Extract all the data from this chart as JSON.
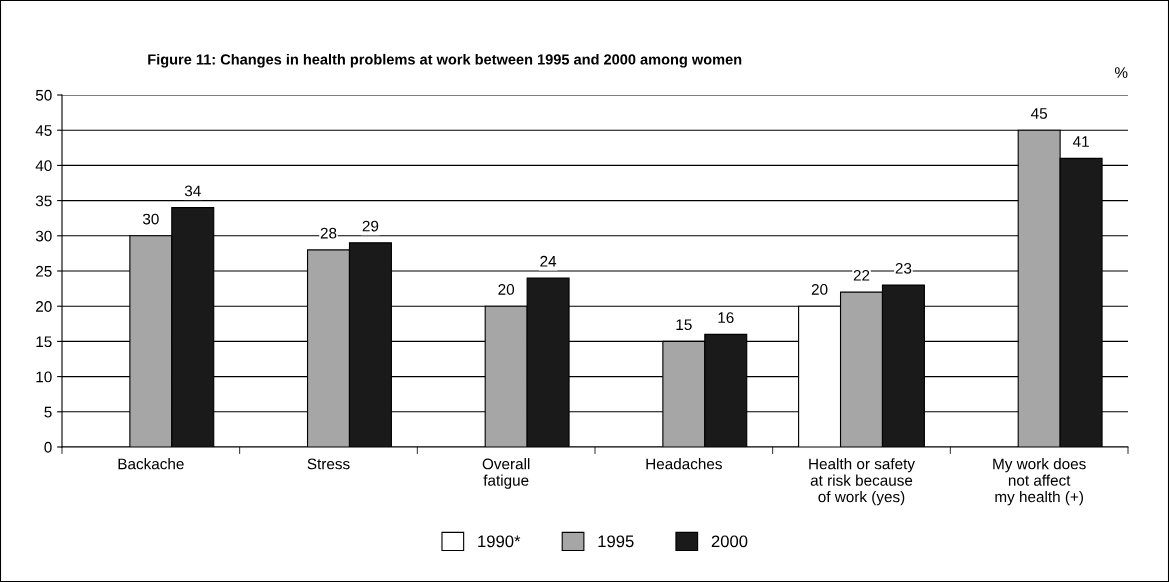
{
  "chart_data": {
    "type": "bar",
    "title": "Figure 11: Changes in health problems at work between 1995 and 2000 among women",
    "ylabel": "%",
    "categories": [
      "Backache",
      "Stress",
      "Overall\nfatigue",
      "Headaches",
      "Health or safety\nat risk because\nof work (yes)",
      "My work does\nnot affect\nmy health (+)"
    ],
    "series": [
      {
        "name": "1990*",
        "color": "#ffffff",
        "values": [
          null,
          null,
          null,
          null,
          20,
          null
        ]
      },
      {
        "name": "1995",
        "color": "#a6a6a6",
        "values": [
          30,
          28,
          20,
          15,
          22,
          45
        ]
      },
      {
        "name": "2000",
        "color": "#1a1a1a",
        "values": [
          34,
          29,
          24,
          16,
          23,
          41
        ]
      }
    ],
    "ylim": [
      0,
      50
    ],
    "yticks": [
      0,
      5,
      10,
      15,
      20,
      25,
      30,
      35,
      40,
      45,
      50
    ],
    "grid": "y",
    "legend": "bottom",
    "data_labels": true
  }
}
